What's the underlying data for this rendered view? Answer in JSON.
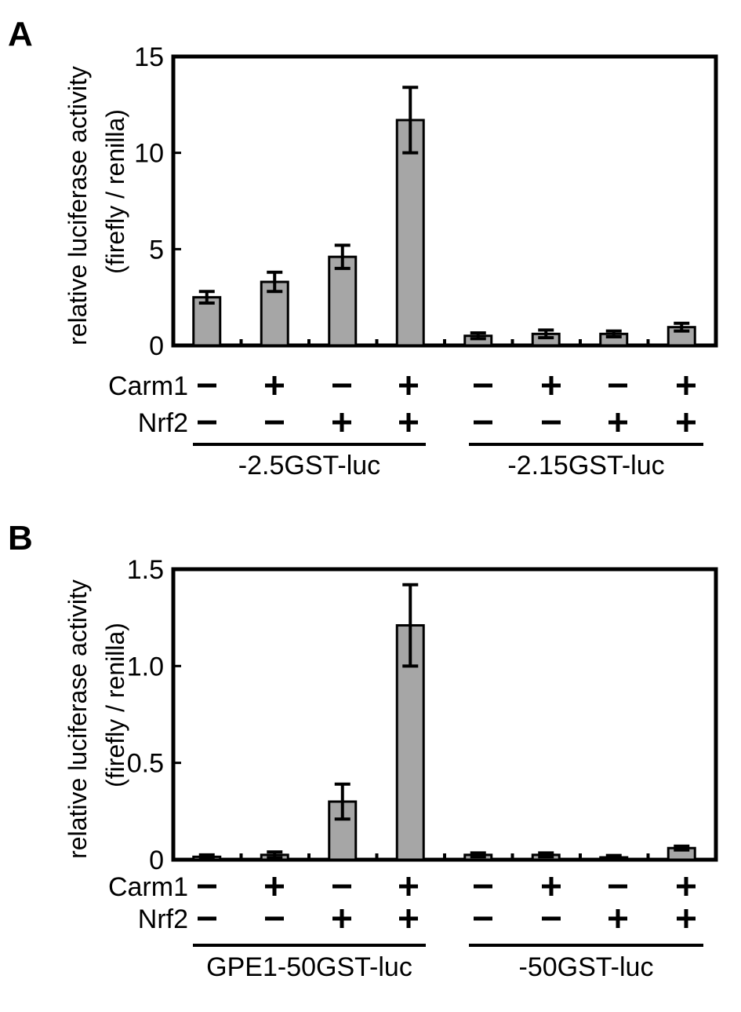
{
  "panels": [
    {
      "letter": "A",
      "ylabel": "relative luciferase activity",
      "ylabel2": "(firefly / renilla)",
      "row_labels": [
        "Carm1",
        "Nrf2"
      ],
      "groups": [
        "-2.5GST-luc",
        "-2.15GST-luc"
      ]
    },
    {
      "letter": "B",
      "ylabel": "relative luciferase activity",
      "ylabel2": "(firefly / renilla)",
      "row_labels": [
        "Carm1",
        "Nrf2"
      ],
      "groups": [
        "GPE1-50GST-luc",
        "-50GST-luc"
      ]
    }
  ],
  "chart_data": [
    {
      "type": "bar",
      "title": "A",
      "ylabel": "relative luciferase activity (firefly / renilla)",
      "ylim": [
        0,
        15
      ],
      "yticks": [
        0,
        5,
        10,
        15
      ],
      "ytick_labels": [
        "0",
        "5",
        "10",
        "15"
      ],
      "conditions": {
        "Carm1": [
          "−",
          "+",
          "−",
          "+",
          "−",
          "+",
          "−",
          "+"
        ],
        "Nrf2": [
          "−",
          "−",
          "+",
          "+",
          "−",
          "−",
          "+",
          "+"
        ]
      },
      "groups": [
        {
          "name": "-2.5GST-luc",
          "bars": [
            0,
            1,
            2,
            3
          ]
        },
        {
          "name": "-2.15GST-luc",
          "bars": [
            4,
            5,
            6,
            7
          ]
        }
      ],
      "values": [
        2.5,
        3.3,
        4.6,
        11.7,
        0.5,
        0.6,
        0.6,
        0.95
      ],
      "errors": [
        0.3,
        0.5,
        0.6,
        1.7,
        0.15,
        0.2,
        0.15,
        0.2
      ],
      "grid": false,
      "bar_color": "#a6a6a6"
    },
    {
      "type": "bar",
      "title": "B",
      "ylabel": "relative luciferase activity (firefly / renilla)",
      "ylim": [
        0,
        1.5
      ],
      "yticks": [
        0,
        0.5,
        1.0,
        1.5
      ],
      "ytick_labels": [
        "0",
        "0.5",
        "1.0",
        "1.5"
      ],
      "conditions": {
        "Carm1": [
          "−",
          "+",
          "−",
          "+",
          "−",
          "+",
          "−",
          "+"
        ],
        "Nrf2": [
          "−",
          "−",
          "+",
          "+",
          "−",
          "−",
          "+",
          "+"
        ]
      },
      "groups": [
        {
          "name": "GPE1-50GST-luc",
          "bars": [
            0,
            1,
            2,
            3
          ]
        },
        {
          "name": "-50GST-luc",
          "bars": [
            4,
            5,
            6,
            7
          ]
        }
      ],
      "values": [
        0.015,
        0.025,
        0.3,
        1.21,
        0.025,
        0.025,
        0.012,
        0.06
      ],
      "errors": [
        0.01,
        0.015,
        0.09,
        0.21,
        0.01,
        0.01,
        0.01,
        0.01
      ],
      "grid": false,
      "bar_color": "#a6a6a6"
    }
  ]
}
